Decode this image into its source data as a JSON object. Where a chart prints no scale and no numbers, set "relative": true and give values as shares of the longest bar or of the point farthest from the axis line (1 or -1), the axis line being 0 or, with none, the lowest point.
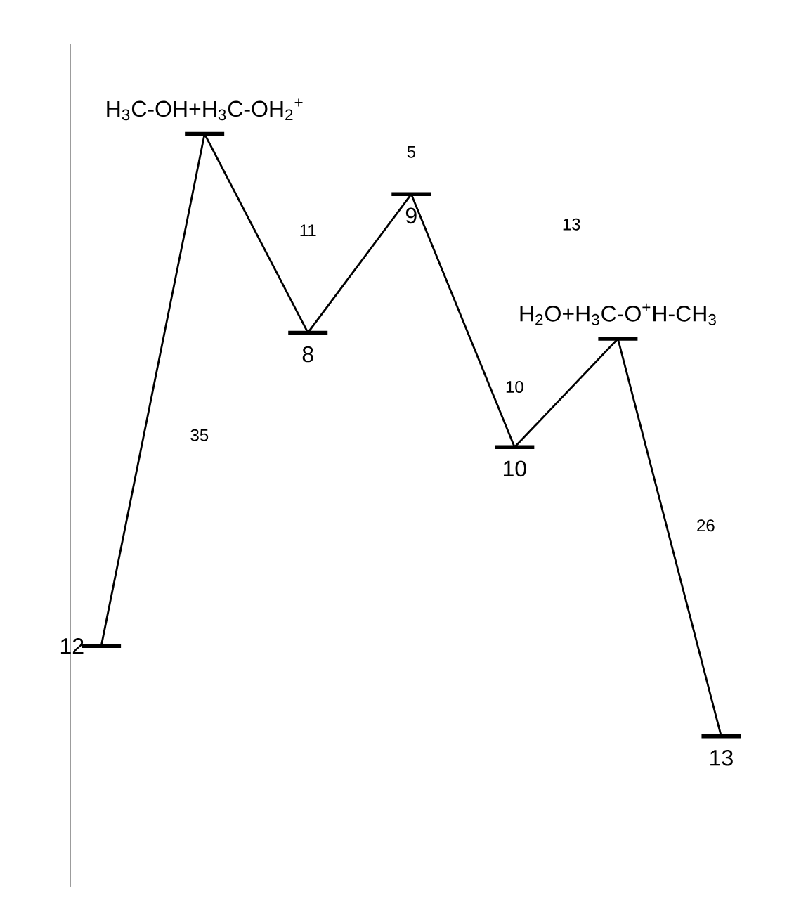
{
  "chart_data": {
    "type": "line",
    "relative": true,
    "categories": [
      null,
      null,
      null,
      null,
      null,
      null,
      null
    ],
    "series": [
      {
        "color": "#000000",
        "values": [
          0.15,
          1,
          0.67,
          0.9,
          0.48,
          0.66,
          0
        ]
      }
    ],
    "annotations": [
      "12",
      "H$_{3}$C-OH+H$_{3}$C-OH$_{2}$$^{+}$",
      "8",
      "9",
      "10",
      "H$_{2}$O+H$_{3}$C-O$^{+}$H-CH$_{3}$",
      "13",
      "35",
      "11",
      "5",
      "13",
      "10",
      "26"
    ]
  }
}
